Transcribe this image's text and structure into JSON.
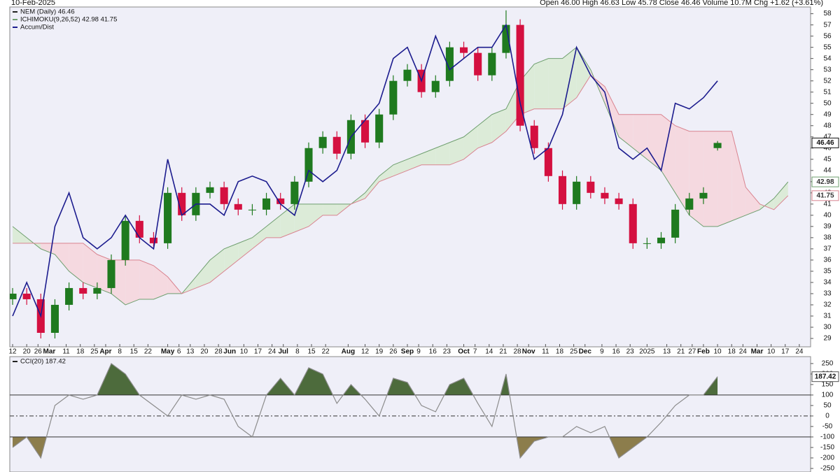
{
  "header": {
    "date": "10-Feb-2025",
    "quote": "Open 46.00  High 46.63  Low 45.78  Close 46.46  Volume 10.7M  Chg +1.62 (+3.61%)"
  },
  "chart_data": [
    {
      "type": "candlestick",
      "x": [
        0,
        5,
        10,
        15,
        20,
        25,
        30,
        35,
        40,
        45,
        50,
        55,
        60,
        65,
        70,
        75,
        80,
        85,
        90,
        95,
        100,
        105,
        110,
        115,
        120,
        125,
        130,
        135,
        140,
        145,
        150,
        155,
        160,
        165,
        170,
        175,
        180,
        185,
        190,
        195,
        200,
        205,
        210,
        215,
        220,
        225,
        230,
        235,
        240,
        245,
        250
      ],
      "series": [
        {
          "name": "NEM (Daily) 46.46",
          "up_color": "#1f7a1f",
          "down_color": "#d41040",
          "open": [
            32.5,
            33,
            32.5,
            29.5,
            32,
            33.5,
            33,
            33.5,
            36,
            39.5,
            38,
            37.5,
            42,
            40,
            42,
            42.5,
            41,
            40.5,
            40.5,
            41.5,
            41,
            43,
            46,
            47,
            45.5,
            48.5,
            46.5,
            49,
            52,
            53,
            51,
            52,
            55,
            54.5,
            52.5,
            54.5,
            57,
            48,
            46,
            43.5,
            41,
            43,
            42,
            41.5,
            41,
            37.5,
            37.5,
            38,
            40.5,
            41.5,
            46
          ],
          "high": [
            33.5,
            33.5,
            33,
            32.5,
            34,
            34,
            34,
            36.5,
            40,
            40,
            38.5,
            42.5,
            42.5,
            42.5,
            43,
            43,
            41.5,
            41,
            42,
            42,
            43.5,
            46.5,
            47.5,
            47.5,
            49,
            49,
            49.5,
            52.5,
            53.5,
            53.5,
            52.5,
            55.5,
            55.5,
            55,
            55,
            58.3,
            57.5,
            48.5,
            46.5,
            44,
            43.5,
            43.5,
            42.5,
            42,
            41.5,
            38,
            38.5,
            41,
            42,
            42.5,
            46.63
          ],
          "low": [
            32,
            32,
            29,
            29,
            31.5,
            32.5,
            32.5,
            33,
            35.5,
            37.5,
            37,
            37,
            39.5,
            39.5,
            41.5,
            40.5,
            40,
            40,
            40,
            40.5,
            40.5,
            42.5,
            45.5,
            45,
            45,
            46,
            46,
            48.5,
            51.5,
            50.5,
            50.5,
            51.5,
            54,
            52,
            52,
            54,
            47.5,
            45.5,
            43,
            40.5,
            40.5,
            41.5,
            41,
            40.5,
            37,
            37,
            37,
            37.5,
            40,
            41,
            45.78
          ],
          "close": [
            33,
            32.5,
            29.5,
            32,
            33.5,
            33,
            33.5,
            36,
            39.5,
            38,
            37.5,
            42,
            40,
            42,
            42.5,
            41,
            40.5,
            40.5,
            41.5,
            41,
            43,
            46,
            47,
            45.5,
            48.5,
            46.5,
            49,
            52,
            53,
            51,
            52,
            55,
            54.5,
            52.5,
            54.5,
            57,
            48,
            46,
            43.5,
            41,
            43,
            42,
            41.5,
            41,
            37.5,
            37.5,
            38,
            40.5,
            41.5,
            42,
            46.46
          ]
        },
        {
          "name": "Accum/Dist",
          "color": "#1c1c8e",
          "values": [
            31,
            34,
            31,
            39,
            42,
            38,
            37,
            38,
            40,
            38,
            37,
            45,
            40,
            41,
            41,
            40,
            43,
            43.5,
            43,
            41,
            40,
            44,
            43,
            44,
            47,
            48.5,
            50,
            54,
            55,
            52,
            56,
            53,
            54,
            55,
            55,
            57,
            50,
            45,
            46,
            49,
            55,
            52.5,
            51,
            46,
            45,
            46,
            44,
            50,
            49.5,
            50.5,
            52
          ]
        }
      ],
      "ichimoku": {
        "name": "ICHIMOKU(9,26,52) 42.98 41.75",
        "a_color": "#6f9f6f",
        "b_color": "#d9838f",
        "a_fill": "#dcebd8",
        "b_fill": "#f5d9e0",
        "x": [
          0,
          5,
          10,
          15,
          20,
          25,
          30,
          35,
          40,
          45,
          50,
          55,
          60,
          65,
          70,
          75,
          80,
          85,
          90,
          95,
          100,
          105,
          110,
          115,
          120,
          125,
          130,
          135,
          140,
          145,
          150,
          155,
          160,
          165,
          170,
          175,
          180,
          185,
          190,
          195,
          200,
          205,
          210,
          215,
          220,
          225,
          230,
          235,
          240,
          245,
          250,
          255,
          260,
          265,
          270,
          275
        ],
        "span_a": [
          39,
          38,
          37,
          36.5,
          35,
          34,
          33.5,
          33,
          32,
          32.5,
          32.5,
          33,
          33,
          34.5,
          36,
          37,
          37.5,
          38,
          39,
          40,
          41,
          41,
          41,
          41,
          41,
          42,
          43.5,
          44.5,
          45,
          45.5,
          46,
          46.5,
          47,
          48,
          49,
          49.5,
          52,
          53.5,
          54,
          54,
          55,
          53,
          50,
          47,
          46,
          45,
          44,
          42,
          40,
          39,
          39,
          39.5,
          40,
          40.5,
          41.5,
          42.98
        ],
        "span_b": [
          37.5,
          37.5,
          37.5,
          37.5,
          37.5,
          37.5,
          36.5,
          36,
          36,
          36,
          35.5,
          34.5,
          33,
          33.5,
          34,
          35,
          36,
          37,
          38,
          38,
          38.5,
          39,
          40,
          40,
          41,
          41.5,
          43,
          43.5,
          44,
          44.5,
          44.5,
          44.5,
          45,
          46,
          46.5,
          47.5,
          49,
          49.5,
          49.5,
          49.5,
          50.5,
          52.5,
          51.5,
          49,
          49,
          49,
          49,
          48,
          47.5,
          47.5,
          47.5,
          47.5,
          42.5,
          41,
          40.5,
          41.75
        ]
      },
      "last_markers": [
        46.46,
        42.98,
        41.75
      ],
      "xlim": [
        -1,
        283
      ],
      "xticks": [
        {
          "value": 0,
          "label": "12"
        },
        {
          "value": 5,
          "label": "20"
        },
        {
          "value": 9,
          "label": "26"
        },
        {
          "value": 13,
          "label": "Mar"
        },
        {
          "value": 19,
          "label": "11"
        },
        {
          "value": 24,
          "label": "18"
        },
        {
          "value": 29,
          "label": "25"
        },
        {
          "value": 33,
          "label": "Apr"
        },
        {
          "value": 38,
          "label": "8"
        },
        {
          "value": 43,
          "label": "15"
        },
        {
          "value": 48,
          "label": "22"
        },
        {
          "value": 55,
          "label": "May"
        },
        {
          "value": 59,
          "label": "6"
        },
        {
          "value": 63,
          "label": "13"
        },
        {
          "value": 68,
          "label": "20"
        },
        {
          "value": 73,
          "label": "28"
        },
        {
          "value": 77,
          "label": "Jun"
        },
        {
          "value": 82,
          "label": "10"
        },
        {
          "value": 87,
          "label": "17"
        },
        {
          "value": 92,
          "label": "24"
        },
        {
          "value": 96,
          "label": "Jul"
        },
        {
          "value": 101,
          "label": "8"
        },
        {
          "value": 106,
          "label": "15"
        },
        {
          "value": 111,
          "label": "22"
        },
        {
          "value": 119,
          "label": "Aug"
        },
        {
          "value": 125,
          "label": "12"
        },
        {
          "value": 130,
          "label": "19"
        },
        {
          "value": 135,
          "label": "26"
        },
        {
          "value": 140,
          "label": "Sep"
        },
        {
          "value": 144,
          "label": "9"
        },
        {
          "value": 149,
          "label": "16"
        },
        {
          "value": 154,
          "label": "23"
        },
        {
          "value": 160,
          "label": "Oct"
        },
        {
          "value": 164,
          "label": "7"
        },
        {
          "value": 169,
          "label": "14"
        },
        {
          "value": 174,
          "label": "21"
        },
        {
          "value": 179,
          "label": "28"
        },
        {
          "value": 183,
          "label": "Nov"
        },
        {
          "value": 189,
          "label": "11"
        },
        {
          "value": 194,
          "label": "18"
        },
        {
          "value": 199,
          "label": "25"
        },
        {
          "value": 203,
          "label": "Dec"
        },
        {
          "value": 209,
          "label": "9"
        },
        {
          "value": 214,
          "label": "16"
        },
        {
          "value": 219,
          "label": "23"
        },
        {
          "value": 225,
          "label": "2025"
        },
        {
          "value": 232,
          "label": "13"
        },
        {
          "value": 237,
          "label": "21"
        },
        {
          "value": 241,
          "label": "27"
        },
        {
          "value": 245,
          "label": "Feb"
        },
        {
          "value": 250,
          "label": "10"
        },
        {
          "value": 255,
          "label": "18"
        },
        {
          "value": 259,
          "label": "24"
        },
        {
          "value": 264,
          "label": "Mar"
        },
        {
          "value": 269,
          "label": "10"
        },
        {
          "value": 274,
          "label": "17"
        },
        {
          "value": 279,
          "label": "24"
        }
      ],
      "ylim": [
        28.25,
        58.6
      ],
      "yticks": [
        29,
        30,
        31,
        32,
        33,
        34,
        35,
        36,
        37,
        38,
        39,
        40,
        41,
        42,
        43,
        44,
        45,
        46,
        47,
        48,
        49,
        50,
        51,
        52,
        53,
        54,
        55,
        56,
        57,
        58
      ]
    },
    {
      "type": "line",
      "x": [
        0,
        5,
        10,
        15,
        20,
        25,
        30,
        35,
        40,
        45,
        50,
        55,
        60,
        65,
        70,
        75,
        80,
        85,
        90,
        95,
        100,
        105,
        110,
        115,
        120,
        125,
        130,
        135,
        140,
        145,
        150,
        155,
        160,
        165,
        170,
        175,
        180,
        185,
        190,
        195,
        200,
        205,
        210,
        215,
        220,
        225,
        230,
        235,
        240,
        245,
        250
      ],
      "series": [
        {
          "name": "CCI(20) 187.42",
          "color": "#8c8c8c",
          "over_fill": "#4d6b3c",
          "under_fill": "#8c7d4c",
          "values": [
            -150,
            -100,
            -200,
            50,
            100,
            80,
            100,
            250,
            200,
            100,
            50,
            0,
            100,
            80,
            100,
            80,
            -50,
            -100,
            100,
            180,
            100,
            230,
            200,
            60,
            150,
            80,
            0,
            180,
            160,
            50,
            20,
            150,
            180,
            60,
            -50,
            200,
            -200,
            -120,
            -100,
            -100,
            -50,
            -80,
            -50,
            -200,
            -150,
            -100,
            -30,
            50,
            100,
            100,
            187.42
          ]
        }
      ],
      "reference_lines": [
        {
          "value": 100,
          "style": "solid"
        },
        {
          "value": -100,
          "style": "solid"
        },
        {
          "value": 0,
          "style": "dashdot"
        }
      ],
      "last_markers": [
        187.42
      ],
      "xlim": [
        -1,
        283
      ],
      "ylim": [
        -267,
        283
      ],
      "yticks": [
        250,
        200,
        150,
        100,
        50,
        0,
        -50,
        -100,
        -150,
        -200,
        -250
      ]
    }
  ]
}
